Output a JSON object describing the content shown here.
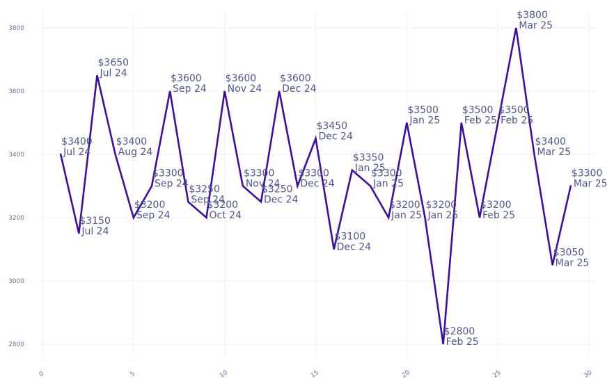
{
  "chart_data": {
    "type": "line",
    "title": "",
    "xlabel": "",
    "ylabel": "",
    "xlim": [
      0,
      30
    ],
    "ylim": [
      2750,
      3850
    ],
    "x_ticks": [
      "0",
      "5",
      "10",
      "15",
      "20",
      "25",
      "30"
    ],
    "y_ticks": [
      "2800",
      "3000",
      "3200",
      "3400",
      "3600",
      "3800"
    ],
    "grid": true,
    "line_color": "#3d0ea3",
    "label_color": "#4e5690",
    "tick_color": "#6b6fa8",
    "points": [
      {
        "x": 1,
        "y": 3400,
        "price": "$3400",
        "date": "Jul 24"
      },
      {
        "x": 2,
        "y": 3150,
        "price": "$3150",
        "date": "Jul 24"
      },
      {
        "x": 3,
        "y": 3650,
        "price": "$3650",
        "date": "Jul 24"
      },
      {
        "x": 4,
        "y": 3400,
        "price": "$3400",
        "date": "Aug 24"
      },
      {
        "x": 5,
        "y": 3200,
        "price": "$3200",
        "date": "Sep 24"
      },
      {
        "x": 6,
        "y": 3300,
        "price": "$3300",
        "date": "Sep 24"
      },
      {
        "x": 7,
        "y": 3600,
        "price": "$3600",
        "date": "Sep 24"
      },
      {
        "x": 8,
        "y": 3250,
        "price": "$3250",
        "date": "Sep 24"
      },
      {
        "x": 9,
        "y": 3200,
        "price": "$3200",
        "date": "Oct 24"
      },
      {
        "x": 10,
        "y": 3600,
        "price": "$3600",
        "date": "Nov 24"
      },
      {
        "x": 11,
        "y": 3300,
        "price": "$3300",
        "date": "Nov 24"
      },
      {
        "x": 12,
        "y": 3250,
        "price": "$3250",
        "date": "Dec 24"
      },
      {
        "x": 13,
        "y": 3600,
        "price": "$3600",
        "date": "Dec 24"
      },
      {
        "x": 14,
        "y": 3300,
        "price": "$3300",
        "date": "Dec 24"
      },
      {
        "x": 15,
        "y": 3450,
        "price": "$3450",
        "date": "Dec 24"
      },
      {
        "x": 16,
        "y": 3100,
        "price": "$3100",
        "date": "Dec 24"
      },
      {
        "x": 17,
        "y": 3350,
        "price": "$3350",
        "date": "Jan 25"
      },
      {
        "x": 18,
        "y": 3300,
        "price": "$3300",
        "date": "Jan 25"
      },
      {
        "x": 19,
        "y": 3200,
        "price": "$3200",
        "date": "Jan 25"
      },
      {
        "x": 20,
        "y": 3500,
        "price": "$3500",
        "date": "Jan 25"
      },
      {
        "x": 21,
        "y": 3200,
        "price": "$3200",
        "date": "Jan 25"
      },
      {
        "x": 22,
        "y": 2800,
        "price": "$2800",
        "date": "Feb 25"
      },
      {
        "x": 23,
        "y": 3500,
        "price": "$3500",
        "date": "Feb 25"
      },
      {
        "x": 24,
        "y": 3200,
        "price": "$3200",
        "date": "Feb 25"
      },
      {
        "x": 25,
        "y": 3500,
        "price": "$3500",
        "date": "Feb 25"
      },
      {
        "x": 26,
        "y": 3800,
        "price": "$3800",
        "date": "Mar 25"
      },
      {
        "x": 27,
        "y": 3400,
        "price": "$3400",
        "date": "Mar 25"
      },
      {
        "x": 28,
        "y": 3050,
        "price": "$3050",
        "date": "Mar 25"
      },
      {
        "x": 29,
        "y": 3300,
        "price": "$3300",
        "date": "Mar 25"
      }
    ]
  }
}
